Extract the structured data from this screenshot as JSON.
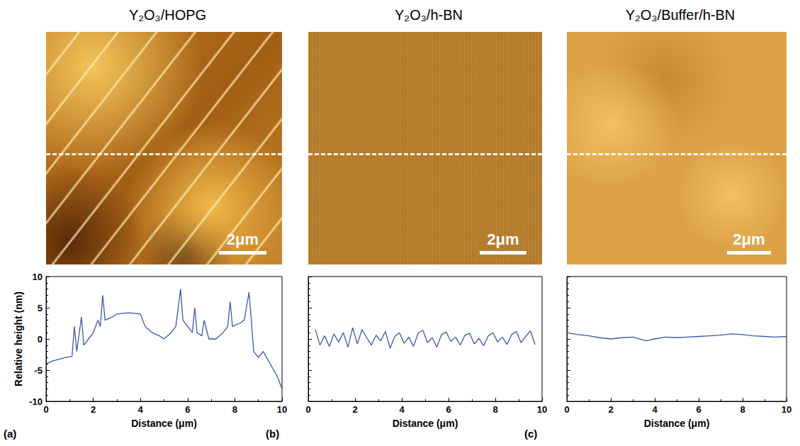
{
  "chart_data": [
    {
      "type": "line",
      "title": "Y₂O₃/HOPG",
      "xlabel": "Distance (μm)",
      "ylabel": "Relative height (nm)",
      "annotations": {
        "scale_bar": "2μm",
        "panel": "(a)"
      },
      "x": [
        0,
        0.3,
        0.8,
        1.1,
        1.2,
        1.3,
        1.5,
        1.6,
        1.8,
        2.0,
        2.2,
        2.3,
        2.4,
        2.5,
        2.8,
        3.0,
        3.5,
        4.0,
        4.2,
        4.5,
        4.8,
        5.0,
        5.3,
        5.5,
        5.7,
        5.8,
        6.0,
        6.2,
        6.3,
        6.4,
        6.6,
        6.7,
        6.9,
        7.2,
        7.5,
        7.7,
        7.8,
        7.9,
        8.2,
        8.4,
        8.6,
        8.7,
        8.8,
        9.0,
        9.2,
        9.5,
        9.8,
        10
      ],
      "values": [
        -4,
        -3.5,
        -3,
        -2.8,
        2,
        -2,
        3.5,
        -1,
        0,
        1,
        3,
        2,
        7,
        3,
        3.5,
        4,
        4.2,
        4,
        2,
        1,
        0.5,
        0,
        1,
        2,
        8,
        3,
        2,
        1,
        5,
        1,
        0.5,
        3,
        0,
        0,
        1,
        2,
        6,
        2,
        2.5,
        3,
        7.5,
        3,
        -2,
        -3,
        -2,
        -4,
        -6,
        -8
      ],
      "color": "#3a5aa8",
      "xlim": [
        0,
        10
      ],
      "ylim": [
        -10,
        10
      ],
      "xticks": [
        0,
        2,
        4,
        6,
        8,
        10
      ],
      "yticks": [
        -10,
        -5,
        0,
        5,
        10
      ],
      "grid": false
    },
    {
      "type": "line",
      "title": "Y₂O₃/h-BN",
      "xlabel": "Distance (μm)",
      "annotations": {
        "scale_bar": "2μm",
        "panel": "(b)"
      },
      "x": [
        0.3,
        0.5,
        0.7,
        0.9,
        1.1,
        1.3,
        1.5,
        1.7,
        1.9,
        2.1,
        2.3,
        2.5,
        2.7,
        2.9,
        3.1,
        3.3,
        3.5,
        3.7,
        3.9,
        4.1,
        4.3,
        4.5,
        4.7,
        4.9,
        5.1,
        5.3,
        5.5,
        5.7,
        5.9,
        6.1,
        6.3,
        6.5,
        6.7,
        6.9,
        7.1,
        7.3,
        7.5,
        7.7,
        7.9,
        8.1,
        8.3,
        8.5,
        8.7,
        8.9,
        9.1,
        9.3,
        9.5,
        9.7
      ],
      "values": [
        1.5,
        -1,
        0.5,
        -1.2,
        0.8,
        -0.5,
        1,
        -1.3,
        1.8,
        -0.8,
        1.5,
        0.2,
        -1,
        0.6,
        -0.3,
        1.2,
        -1.5,
        0.4,
        1,
        -0.7,
        0.3,
        -1.2,
        0.9,
        1.4,
        -0.6,
        0.2,
        -1.3,
        0.7,
        1.1,
        -0.4,
        0.3,
        -1,
        0.6,
        0.9,
        -0.8,
        0.1,
        -1.1,
        0.5,
        1,
        -0.5,
        0.3,
        -0.9,
        0.7,
        1.2,
        -0.6,
        0.4,
        1.3,
        -0.9
      ],
      "color": "#3a5aa8",
      "xlim": [
        0,
        10
      ],
      "ylim": [
        -10,
        10
      ],
      "xticks": [
        0,
        2,
        4,
        6,
        8,
        10
      ],
      "yticks": [
        -10,
        -5,
        0,
        5,
        10
      ],
      "grid": false,
      "tick_labels": "x"
    },
    {
      "type": "line",
      "title": "Y₂O₃/Buffer/h-BN",
      "xlabel": "Distance (μm)",
      "annotations": {
        "scale_bar": "2μm",
        "panel": "(c)"
      },
      "x": [
        0,
        0.5,
        1,
        1.5,
        2,
        2.5,
        3,
        3.6,
        4,
        4.5,
        5,
        5.5,
        6,
        6.5,
        7,
        7.5,
        8,
        8.5,
        9,
        9.5,
        10
      ],
      "values": [
        1,
        0.7,
        0.5,
        0.2,
        0,
        0.2,
        0.3,
        -0.3,
        0,
        0.3,
        0.2,
        0.3,
        0.4,
        0.5,
        0.6,
        0.8,
        0.7,
        0.5,
        0.4,
        0.3,
        0.4
      ],
      "color": "#3a5aa8",
      "xlim": [
        0,
        10
      ],
      "ylim": [
        -10,
        10
      ],
      "xticks": [
        0,
        2,
        4,
        6,
        8,
        10
      ],
      "yticks": [
        -10,
        -5,
        0,
        5,
        10
      ],
      "grid": false,
      "tick_labels": "x"
    }
  ]
}
